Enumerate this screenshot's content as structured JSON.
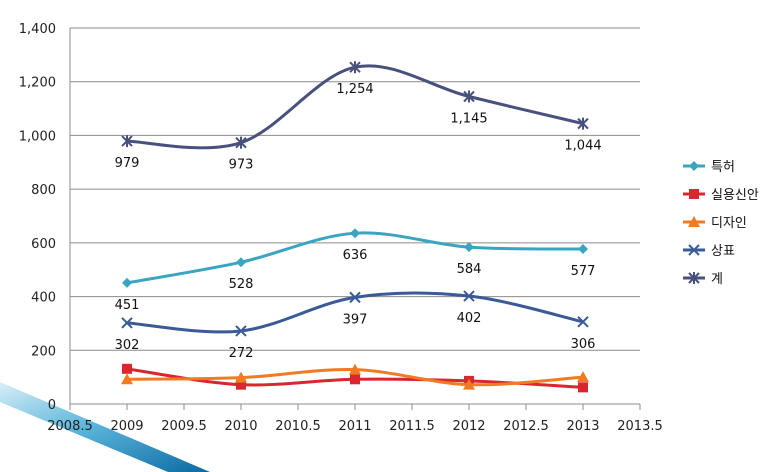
{
  "chart_data": {
    "type": "line",
    "title": "",
    "xlabel": "",
    "ylabel": "",
    "xlim": [
      2008.5,
      2013.5
    ],
    "ylim": [
      0,
      1400
    ],
    "x_ticks": [
      "2008.5",
      "2009",
      "2009.5",
      "2010",
      "2010.5",
      "2011",
      "2011.5",
      "2012",
      "2012.5",
      "2013",
      "2013.5"
    ],
    "y_ticks": [
      "0",
      "200",
      "400",
      "600",
      "800",
      "1,000",
      "1,200",
      "1,400"
    ],
    "grid": "horizontal",
    "legend_position": "right",
    "x": [
      2009,
      2010,
      2011,
      2012,
      2013
    ],
    "series": [
      {
        "name": "특허",
        "values": [
          451,
          528,
          636,
          584,
          577
        ],
        "labels": [
          "451",
          "528",
          "636",
          "584",
          "577"
        ],
        "color": "#3aa5c0",
        "marker": "diamond"
      },
      {
        "name": "실용신안",
        "values": [
          131,
          72,
          92,
          86,
          62
        ],
        "labels": [],
        "color": "#d9262f",
        "marker": "square"
      },
      {
        "name": "디자인",
        "values": [
          92,
          98,
          128,
          72,
          100
        ],
        "labels": [],
        "color": "#f07b22",
        "marker": "triangle"
      },
      {
        "name": "상표",
        "values": [
          302,
          272,
          397,
          402,
          306
        ],
        "labels": [
          "302",
          "272",
          "397",
          "402",
          "306"
        ],
        "color": "#3a5a98",
        "marker": "x"
      },
      {
        "name": "계",
        "values": [
          979,
          973,
          1254,
          1145,
          1044
        ],
        "labels": [
          "979",
          "973",
          "1,254",
          "1,145",
          "1,044"
        ],
        "color": "#48517d",
        "marker": "star"
      }
    ]
  }
}
